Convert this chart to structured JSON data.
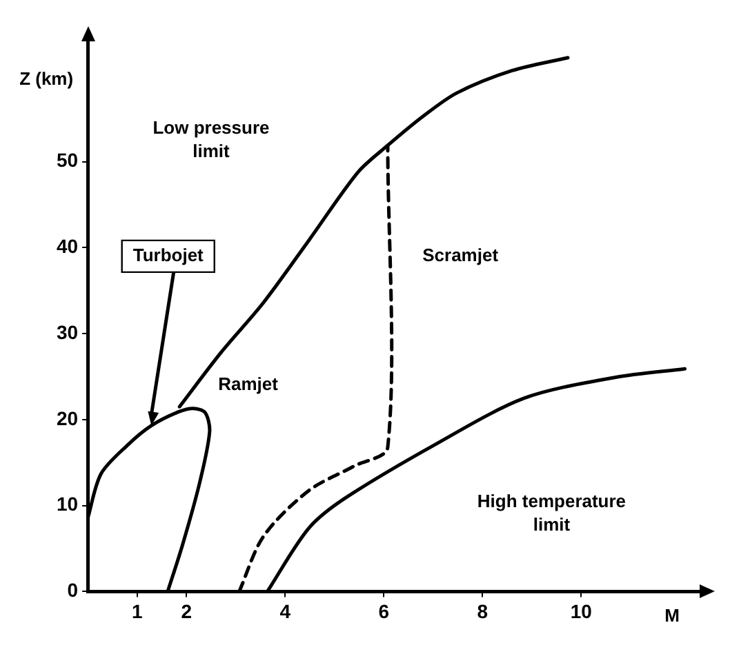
{
  "chart_data": {
    "type": "line",
    "xlabel": "M",
    "ylabel": "Z (km)",
    "xlim": [
      0,
      12.4
    ],
    "ylim": [
      0,
      64
    ],
    "xticks": [
      1,
      2,
      4,
      6,
      8,
      10
    ],
    "yticks": [
      0,
      10,
      20,
      30,
      40,
      50
    ],
    "grid": false,
    "legend": false,
    "marker": "none",
    "series": [
      {
        "color": "#000000",
        "line_style": "solid",
        "x": [
          0,
          0.27,
          0.82,
          1.29,
          1.84,
          2.14,
          2.38,
          2.47,
          2.27,
          1.92,
          1.62
        ],
        "values": [
          8.5,
          13.7,
          17.1,
          19.3,
          20.9,
          21.3,
          20.8,
          18.6,
          12.7,
          5.4,
          0
        ]
      },
      {
        "color": "#000000",
        "line_style": "solid",
        "x": [
          1.86,
          2.7,
          3.56,
          4.5,
          5.48,
          6.08,
          6.8,
          7.48,
          8.6,
          9.73
        ],
        "values": [
          21.5,
          27.8,
          33.6,
          41,
          48.8,
          51.9,
          55.3,
          58,
          60.6,
          62.1
        ]
      },
      {
        "color": "#000000",
        "line_style": "dashed",
        "x": [
          3.07,
          3.56,
          4.47,
          5.4,
          6.08,
          6.08
        ],
        "values": [
          0,
          6.4,
          11.7,
          14.6,
          16.8,
          51.9
        ]
      },
      {
        "color": "#000000",
        "line_style": "solid",
        "x": [
          3.64,
          4.47,
          5.2,
          7.04,
          8.85,
          10.68,
          12.1
        ],
        "values": [
          0,
          7.3,
          10.8,
          17.1,
          22.5,
          24.9,
          25.9
        ]
      }
    ],
    "annotations": [
      "Low pressure limit",
      {
        "text": "Turbojet",
        "x": 1.29,
        "y": 19.3
      },
      "Ramjet",
      "Scramjet",
      "High temperature limit"
    ]
  }
}
